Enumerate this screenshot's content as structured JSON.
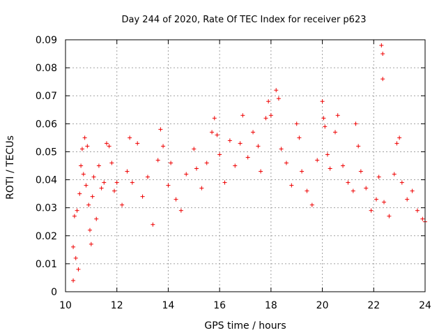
{
  "chart_data": {
    "type": "scatter",
    "title": "Day 244 of 2020, Rate Of TEC Index for receiver p623",
    "xlabel": "GPS time / hours",
    "ylabel": "ROTI / TECUs",
    "xlim": [
      10,
      24
    ],
    "ylim": [
      0,
      0.09
    ],
    "x_ticks": [
      "10",
      "12",
      "14",
      "16",
      "18",
      "20",
      "22",
      "24"
    ],
    "y_ticks": [
      "0",
      "0.01",
      "0.02",
      "0.03",
      "0.04",
      "0.05",
      "0.06",
      "0.07",
      "0.08",
      "0.09"
    ],
    "grid": true,
    "marker": "plus",
    "marker_color": "#ee0000",
    "series": [
      {
        "points": [
          [
            10.3,
            0.004
          ],
          [
            10.3,
            0.016
          ],
          [
            10.35,
            0.027
          ],
          [
            10.4,
            0.012
          ],
          [
            10.45,
            0.029
          ],
          [
            10.5,
            0.008
          ],
          [
            10.55,
            0.035
          ],
          [
            10.6,
            0.045
          ],
          [
            10.65,
            0.051
          ],
          [
            10.7,
            0.042
          ],
          [
            10.75,
            0.055
          ],
          [
            10.8,
            0.038
          ],
          [
            10.85,
            0.052
          ],
          [
            10.9,
            0.031
          ],
          [
            10.95,
            0.022
          ],
          [
            11.0,
            0.017
          ],
          [
            11.05,
            0.034
          ],
          [
            11.1,
            0.041
          ],
          [
            11.2,
            0.026
          ],
          [
            11.3,
            0.045
          ],
          [
            11.4,
            0.037
          ],
          [
            11.5,
            0.039
          ],
          [
            11.6,
            0.053
          ],
          [
            11.7,
            0.052
          ],
          [
            11.8,
            0.046
          ],
          [
            11.9,
            0.036
          ],
          [
            12.0,
            0.039
          ],
          [
            12.2,
            0.031
          ],
          [
            12.4,
            0.043
          ],
          [
            12.5,
            0.055
          ],
          [
            12.6,
            0.039
          ],
          [
            12.8,
            0.053
          ],
          [
            13.0,
            0.034
          ],
          [
            13.2,
            0.041
          ],
          [
            13.4,
            0.024
          ],
          [
            13.6,
            0.047
          ],
          [
            13.7,
            0.058
          ],
          [
            13.8,
            0.052
          ],
          [
            14.0,
            0.038
          ],
          [
            14.1,
            0.046
          ],
          [
            14.3,
            0.033
          ],
          [
            14.5,
            0.029
          ],
          [
            14.7,
            0.042
          ],
          [
            15.0,
            0.051
          ],
          [
            15.1,
            0.044
          ],
          [
            15.3,
            0.037
          ],
          [
            15.5,
            0.046
          ],
          [
            15.7,
            0.057
          ],
          [
            15.8,
            0.062
          ],
          [
            15.9,
            0.056
          ],
          [
            16.0,
            0.049
          ],
          [
            16.2,
            0.039
          ],
          [
            16.4,
            0.054
          ],
          [
            16.6,
            0.045
          ],
          [
            16.8,
            0.053
          ],
          [
            16.9,
            0.063
          ],
          [
            17.1,
            0.048
          ],
          [
            17.3,
            0.057
          ],
          [
            17.5,
            0.052
          ],
          [
            17.6,
            0.043
          ],
          [
            17.8,
            0.062
          ],
          [
            17.9,
            0.068
          ],
          [
            18.0,
            0.063
          ],
          [
            18.2,
            0.072
          ],
          [
            18.3,
            0.069
          ],
          [
            18.4,
            0.051
          ],
          [
            18.6,
            0.046
          ],
          [
            18.8,
            0.038
          ],
          [
            19.0,
            0.06
          ],
          [
            19.1,
            0.055
          ],
          [
            19.2,
            0.043
          ],
          [
            19.4,
            0.036
          ],
          [
            19.6,
            0.031
          ],
          [
            19.8,
            0.047
          ],
          [
            20.0,
            0.068
          ],
          [
            20.05,
            0.062
          ],
          [
            20.1,
            0.059
          ],
          [
            20.2,
            0.049
          ],
          [
            20.3,
            0.044
          ],
          [
            20.5,
            0.057
          ],
          [
            20.6,
            0.063
          ],
          [
            20.8,
            0.045
          ],
          [
            21.0,
            0.039
          ],
          [
            21.2,
            0.036
          ],
          [
            21.3,
            0.06
          ],
          [
            21.4,
            0.052
          ],
          [
            21.5,
            0.043
          ],
          [
            21.7,
            0.037
          ],
          [
            21.9,
            0.029
          ],
          [
            22.1,
            0.033
          ],
          [
            22.2,
            0.041
          ],
          [
            22.3,
            0.088
          ],
          [
            22.35,
            0.085
          ],
          [
            22.35,
            0.076
          ],
          [
            22.4,
            0.032
          ],
          [
            22.6,
            0.027
          ],
          [
            22.8,
            0.042
          ],
          [
            22.9,
            0.053
          ],
          [
            23.0,
            0.055
          ],
          [
            23.1,
            0.039
          ],
          [
            23.3,
            0.033
          ],
          [
            23.5,
            0.036
          ],
          [
            23.7,
            0.029
          ],
          [
            23.9,
            0.026
          ],
          [
            24.0,
            0.025
          ]
        ]
      }
    ]
  }
}
